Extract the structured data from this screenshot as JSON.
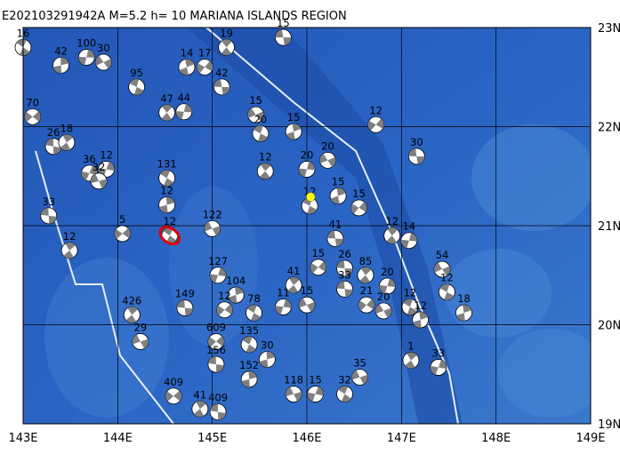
{
  "map": {
    "title": "E202103291942A  M=5.2  h= 10  MARIANA ISLANDS REGION",
    "lonlim": [
      143,
      149
    ],
    "latlim": [
      19,
      23
    ],
    "lon_ticks": [
      {
        "value": 143,
        "label": "143E"
      },
      {
        "value": 144,
        "label": "144E"
      },
      {
        "value": 145,
        "label": "145E"
      },
      {
        "value": 146,
        "label": "146E"
      },
      {
        "value": 147,
        "label": "147E"
      },
      {
        "value": 148,
        "label": "148E"
      },
      {
        "value": 149,
        "label": "149E"
      }
    ],
    "lat_ticks": [
      {
        "value": 19,
        "label": "19N"
      },
      {
        "value": 20,
        "label": "20N"
      },
      {
        "value": 21,
        "label": "21N"
      },
      {
        "value": 22,
        "label": "22N"
      },
      {
        "value": 23,
        "label": "23N"
      }
    ],
    "grid": true,
    "highlight_event": {
      "lon": 146.04,
      "lat": 21.29,
      "color": "#ffff00"
    },
    "selected_color": "#e00000",
    "events": [
      {
        "lon": 145.75,
        "lat": 22.9,
        "depth": "15"
      },
      {
        "lon": 145.15,
        "lat": 22.8,
        "depth": "19"
      },
      {
        "lon": 143.67,
        "lat": 22.7,
        "depth": "100"
      },
      {
        "lon": 143.85,
        "lat": 22.65,
        "depth": "30"
      },
      {
        "lon": 144.2,
        "lat": 22.4,
        "depth": "95"
      },
      {
        "lon": 144.73,
        "lat": 22.6,
        "depth": "14"
      },
      {
        "lon": 144.92,
        "lat": 22.6,
        "depth": "17"
      },
      {
        "lon": 145.1,
        "lat": 22.4,
        "depth": "42"
      },
      {
        "lon": 144.52,
        "lat": 22.14,
        "depth": "47"
      },
      {
        "lon": 144.7,
        "lat": 22.15,
        "depth": "44"
      },
      {
        "lon": 145.46,
        "lat": 22.12,
        "depth": "15"
      },
      {
        "lon": 145.51,
        "lat": 21.93,
        "depth": "20"
      },
      {
        "lon": 145.86,
        "lat": 21.95,
        "depth": "15"
      },
      {
        "lon": 146.73,
        "lat": 22.02,
        "depth": "12"
      },
      {
        "lon": 147.16,
        "lat": 21.7,
        "depth": "30"
      },
      {
        "lon": 145.56,
        "lat": 21.55,
        "depth": "12"
      },
      {
        "lon": 146.0,
        "lat": 21.57,
        "depth": "20"
      },
      {
        "lon": 146.22,
        "lat": 21.66,
        "depth": "20"
      },
      {
        "lon": 146.03,
        "lat": 21.2,
        "depth": "12"
      },
      {
        "lon": 146.33,
        "lat": 21.3,
        "depth": "15"
      },
      {
        "lon": 146.55,
        "lat": 21.18,
        "depth": "15"
      },
      {
        "lon": 146.3,
        "lat": 20.87,
        "depth": "41"
      },
      {
        "lon": 146.9,
        "lat": 20.9,
        "depth": "12"
      },
      {
        "lon": 147.08,
        "lat": 20.85,
        "depth": "14"
      },
      {
        "lon": 147.43,
        "lat": 20.56,
        "depth": "54"
      },
      {
        "lon": 147.48,
        "lat": 20.33,
        "depth": "12"
      },
      {
        "lon": 147.66,
        "lat": 20.12,
        "depth": "18"
      },
      {
        "lon": 146.12,
        "lat": 20.58,
        "depth": "15"
      },
      {
        "lon": 146.4,
        "lat": 20.57,
        "depth": "26"
      },
      {
        "lon": 146.62,
        "lat": 20.5,
        "depth": "85"
      },
      {
        "lon": 146.85,
        "lat": 20.39,
        "depth": "20"
      },
      {
        "lon": 146.81,
        "lat": 20.14,
        "depth": "20"
      },
      {
        "lon": 147.09,
        "lat": 20.18,
        "depth": "12"
      },
      {
        "lon": 147.2,
        "lat": 20.05,
        "depth": "12"
      },
      {
        "lon": 146.63,
        "lat": 20.2,
        "depth": "21"
      },
      {
        "lon": 146.4,
        "lat": 20.36,
        "depth": "33"
      },
      {
        "lon": 145.86,
        "lat": 20.4,
        "depth": "41"
      },
      {
        "lon": 145.75,
        "lat": 20.18,
        "depth": "11"
      },
      {
        "lon": 146.0,
        "lat": 20.2,
        "depth": "15"
      },
      {
        "lon": 145.44,
        "lat": 20.12,
        "depth": "78"
      },
      {
        "lon": 145.25,
        "lat": 20.3,
        "depth": "104"
      },
      {
        "lon": 145.13,
        "lat": 20.15,
        "depth": "12"
      },
      {
        "lon": 144.71,
        "lat": 20.17,
        "depth": "149"
      },
      {
        "lon": 144.15,
        "lat": 20.1,
        "depth": "426"
      },
      {
        "lon": 145.06,
        "lat": 20.5,
        "depth": "127"
      },
      {
        "lon": 145.0,
        "lat": 20.97,
        "depth": "122"
      },
      {
        "lon": 144.52,
        "lat": 21.48,
        "depth": "131"
      },
      {
        "lon": 144.52,
        "lat": 21.21,
        "depth": "12"
      },
      {
        "lon": 144.05,
        "lat": 20.92,
        "depth": "5"
      },
      {
        "lon": 143.27,
        "lat": 21.1,
        "depth": "33"
      },
      {
        "lon": 143.49,
        "lat": 20.75,
        "depth": "12"
      },
      {
        "lon": 143.88,
        "lat": 21.57,
        "depth": "12"
      },
      {
        "lon": 144.24,
        "lat": 19.83,
        "depth": "29"
      },
      {
        "lon": 145.39,
        "lat": 19.8,
        "depth": "135"
      },
      {
        "lon": 145.58,
        "lat": 19.65,
        "depth": "30"
      },
      {
        "lon": 145.04,
        "lat": 19.83,
        "depth": "609"
      },
      {
        "lon": 145.04,
        "lat": 19.6,
        "depth": "156"
      },
      {
        "lon": 147.1,
        "lat": 19.64,
        "depth": "1"
      },
      {
        "lon": 147.39,
        "lat": 19.57,
        "depth": "33"
      },
      {
        "lon": 146.56,
        "lat": 19.47,
        "depth": "35"
      },
      {
        "lon": 146.4,
        "lat": 19.3,
        "depth": "32"
      },
      {
        "lon": 145.39,
        "lat": 19.45,
        "depth": "152"
      },
      {
        "lon": 144.59,
        "lat": 19.28,
        "depth": "409"
      },
      {
        "lon": 145.06,
        "lat": 19.12,
        "depth": "409"
      },
      {
        "lon": 144.87,
        "lat": 19.15,
        "depth": "41"
      },
      {
        "lon": 146.09,
        "lat": 19.3,
        "depth": "15"
      },
      {
        "lon": 145.86,
        "lat": 19.3,
        "depth": "118"
      },
      {
        "lon": 143.0,
        "lat": 22.8,
        "depth": "16"
      },
      {
        "lon": 143.4,
        "lat": 22.62,
        "depth": "42"
      },
      {
        "lon": 143.1,
        "lat": 22.1,
        "depth": "70"
      },
      {
        "lon": 143.32,
        "lat": 21.8,
        "depth": "26"
      },
      {
        "lon": 143.46,
        "lat": 21.84,
        "depth": "18"
      },
      {
        "lon": 143.7,
        "lat": 21.53,
        "depth": "36"
      },
      {
        "lon": 143.8,
        "lat": 21.45,
        "depth": "32"
      },
      {
        "lon": 144.55,
        "lat": 20.9,
        "depth": "12",
        "selected": true
      }
    ]
  }
}
